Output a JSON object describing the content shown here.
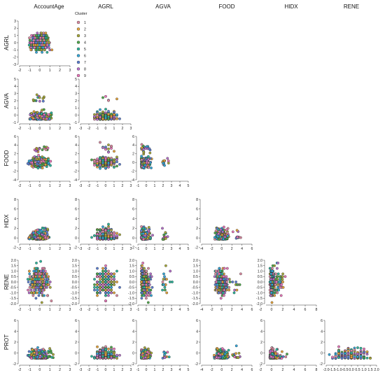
{
  "chart_data": {
    "type": "scatter",
    "subtype": "pair-plot (lower triangle)",
    "variables": [
      "AccountAge",
      "AGRL",
      "AGVA",
      "FOOD",
      "HIDX",
      "RENE",
      "PROT"
    ],
    "column_titles": [
      "AccountAge",
      "AGRL",
      "AGVA",
      "FOOD",
      "HIDX",
      "RENE"
    ],
    "row_titles": [
      "AGRL",
      "AGVA",
      "FOOD",
      "HIDX",
      "RENE",
      "PROT"
    ],
    "legend": {
      "title": "Cluster",
      "placement": "top-left, beside first panel",
      "entries": [
        "1",
        "2",
        "3",
        "4",
        "5",
        "6",
        "7",
        "8",
        "9"
      ],
      "colors": [
        "#d98aa0",
        "#e3a33c",
        "#a7a83a",
        "#4fa84a",
        "#2fb59c",
        "#34a6d8",
        "#5c7fd1",
        "#b56fc9",
        "#e675b8"
      ]
    },
    "ranges": {
      "AccountAge": [
        -2,
        3
      ],
      "AGRL": [
        -3,
        3
      ],
      "AGVA": [
        -1,
        5
      ],
      "FOOD": [
        -4,
        6
      ],
      "HIDX": [
        -1,
        8
      ],
      "RENE": [
        -2,
        2
      ],
      "PROT": [
        -2,
        6
      ]
    },
    "ticks": {
      "AccountAge": [
        "-2",
        "-1",
        "0",
        "1",
        "2",
        "3"
      ],
      "AGRL": [
        "-3",
        "-2",
        "-1",
        "0",
        "1",
        "2",
        "3"
      ],
      "AGVA": [
        "-1",
        "0",
        "1",
        "2",
        "3",
        "4",
        "5"
      ],
      "FOOD": [
        "-4",
        "-2",
        "0",
        "2",
        "4",
        "6"
      ],
      "HIDX": [
        "-2",
        "0",
        "2",
        "4",
        "6",
        "8"
      ],
      "RENE": [
        "-2.0",
        "-1.5",
        "-1.0",
        "-0.5",
        "0.0",
        "0.5",
        "1.0",
        "1.5",
        "2.0"
      ],
      "PROT": [
        "-2",
        "0",
        "2",
        "4",
        "6"
      ]
    },
    "grid": false,
    "note": "Individual point values are not labeled; points are overplotted by cluster and were approximated."
  }
}
